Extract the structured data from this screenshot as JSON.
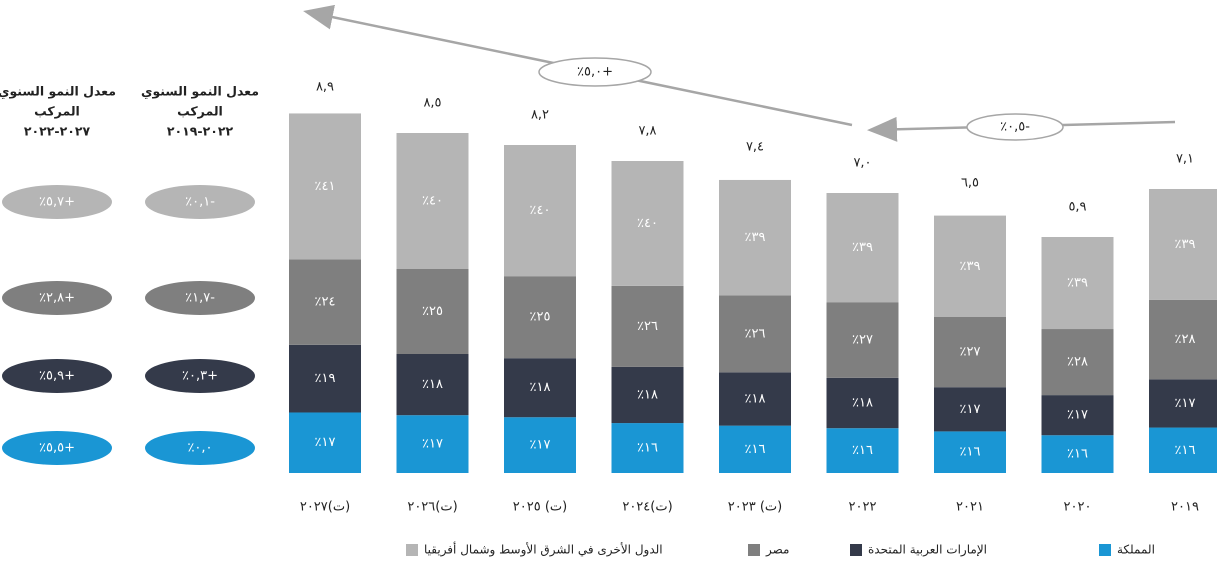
{
  "chart_data": {
    "type": "stacked-bar",
    "categories": [
      "٢٠٢٧(ت)",
      "٢٠٢٦(ت)",
      "٢٠٢٥ (ت)",
      "٢٠٢٤(ت)",
      "٢٠٢٣ (ت)",
      "٢٠٢٢",
      "٢٠٢١",
      "٢٠٢٠",
      "٢٠١٩"
    ],
    "totals": {
      "values": [
        8.9,
        8.5,
        8.2,
        7.8,
        7.4,
        7.0,
        6.5,
        5.9,
        7.1
      ],
      "value_labels": [
        "٨,٩",
        "٨,٥",
        "٨,٢",
        "٧,٨",
        "٧,٤",
        "٧,٠",
        "٦,٥",
        "٥,٩",
        "٧,١"
      ]
    },
    "series": [
      {
        "name": "المملكة",
        "color": "#1a96d4",
        "values": [
          17,
          17,
          17,
          16,
          16,
          16,
          16,
          16,
          16
        ],
        "value_labels": [
          "٪١٧",
          "٪١٧",
          "٪١٧",
          "٪١٦",
          "٪١٦",
          "٪١٦",
          "٪١٦",
          "٪١٦",
          "٪١٦"
        ]
      },
      {
        "name": "الإمارات العربية المتحدة",
        "color": "#343a4a",
        "values": [
          19,
          18,
          18,
          18,
          18,
          18,
          17,
          17,
          17
        ],
        "value_labels": [
          "٪١٩",
          "٪١٨",
          "٪١٨",
          "٪١٨",
          "٪١٨",
          "٪١٨",
          "٪١٧",
          "٪١٧",
          "٪١٧"
        ]
      },
      {
        "name": "مصر",
        "color": "#7f7f7f",
        "values": [
          24,
          25,
          25,
          26,
          26,
          27,
          27,
          28,
          28
        ],
        "value_labels": [
          "٪٢٤",
          "٪٢٥",
          "٪٢٥",
          "٪٢٦",
          "٪٢٦",
          "٪٢٧",
          "٪٢٧",
          "٪٢٨",
          "٪٢٨"
        ]
      },
      {
        "name": "الدول الأخرى في الشرق الأوسط وشمال أفريقيا",
        "color": "#b5b5b5",
        "values": [
          41,
          40,
          40,
          40,
          39,
          39,
          39,
          39,
          39
        ],
        "value_labels": [
          "٪٤١",
          "٪٤٠",
          "٪٤٠",
          "٪٤٠",
          "٪٣٩",
          "٪٣٩",
          "٪٣٩",
          "٪٣٩",
          "٪٣٩"
        ]
      }
    ],
    "annotations": [
      "٪٥,٠+",
      "٪٠,٥-"
    ],
    "cagr": {
      "headers": [
        [
          "معدل النمو السنوي",
          "المركب",
          "٢٠٢٧-٢٠٢٢"
        ],
        [
          "معدل النمو السنوي",
          "المركب",
          "٢٠٢٢-٢٠١٩"
        ]
      ],
      "columns": [
        [
          "٪٥,٥+",
          "٪٥,٩+",
          "٪٢,٨+",
          "٪٥,٧+"
        ],
        [
          "٪٠,٠",
          "٪٠,٣+",
          "٪١,٧-",
          "٪٠,١-"
        ]
      ]
    }
  }
}
